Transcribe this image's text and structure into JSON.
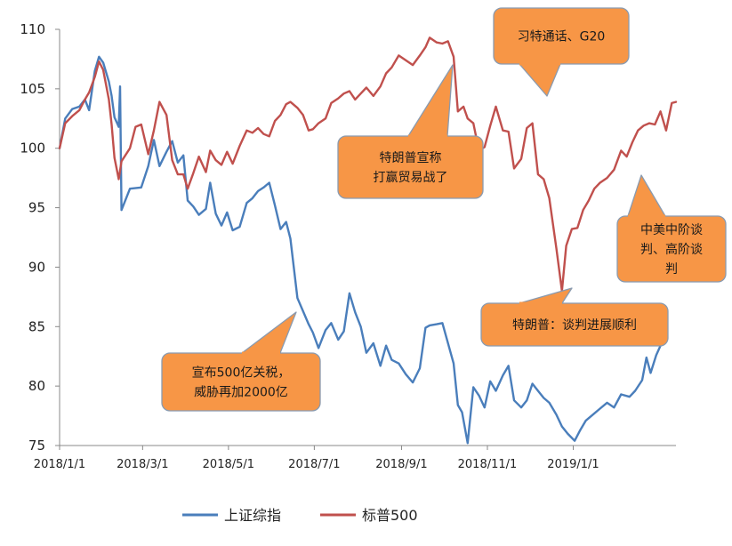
{
  "chart_data": {
    "type": "line",
    "title": "",
    "xlabel": "",
    "ylabel": "",
    "ylim": [
      75,
      110
    ],
    "yticks": [
      75,
      80,
      85,
      90,
      95,
      100,
      105,
      110
    ],
    "xticks": [
      "2018/1/1",
      "2018/3/1",
      "2018/5/1",
      "2018/7/1",
      "2018/9/1",
      "2018/11/1",
      "2019/1/1"
    ],
    "xrange": [
      "2018/1/1",
      "2019/3/15"
    ],
    "grid": false,
    "legend_position": "bottom",
    "series": [
      {
        "name": "上证综指",
        "color": "#4a7ebb",
        "points": [
          [
            "2018/1/1",
            100
          ],
          [
            "2018/1/5",
            102.5
          ],
          [
            "2018/1/10",
            103.3
          ],
          [
            "2018/1/15",
            103.5
          ],
          [
            "2018/1/19",
            104.1
          ],
          [
            "2018/1/22",
            103.2
          ],
          [
            "2018/1/26",
            106.5
          ],
          [
            "2018/1/29",
            107.7
          ],
          [
            "2018/2/1",
            107.2
          ],
          [
            "2018/2/5",
            105.6
          ],
          [
            "2018/2/7",
            104.4
          ],
          [
            "2018/2/9",
            102.6
          ],
          [
            "2018/2/12",
            101.8
          ],
          [
            "2018/2/13",
            105.2
          ],
          [
            "2018/2/14",
            94.8
          ],
          [
            "2018/2/20",
            96.6
          ],
          [
            "2018/2/28",
            96.7
          ],
          [
            "2018/3/5",
            98.5
          ],
          [
            "2018/3/9",
            100.7
          ],
          [
            "2018/3/13",
            98.5
          ],
          [
            "2018/3/18",
            99.7
          ],
          [
            "2018/3/22",
            100.6
          ],
          [
            "2018/3/26",
            98.8
          ],
          [
            "2018/3/30",
            99.4
          ],
          [
            "2018/4/2",
            95.6
          ],
          [
            "2018/4/6",
            95.1
          ],
          [
            "2018/4/10",
            94.4
          ],
          [
            "2018/4/15",
            94.9
          ],
          [
            "2018/4/18",
            97.1
          ],
          [
            "2018/4/22",
            94.5
          ],
          [
            "2018/4/26",
            93.5
          ],
          [
            "2018/4/30",
            94.6
          ],
          [
            "2018/5/4",
            93.1
          ],
          [
            "2018/5/9",
            93.4
          ],
          [
            "2018/5/14",
            95.4
          ],
          [
            "2018/5/18",
            95.8
          ],
          [
            "2018/5/22",
            96.4
          ],
          [
            "2018/5/26",
            96.7
          ],
          [
            "2018/5/30",
            97.1
          ],
          [
            "2018/6/3",
            95.2
          ],
          [
            "2018/6/7",
            93.2
          ],
          [
            "2018/6/11",
            93.8
          ],
          [
            "2018/6/14",
            92.4
          ],
          [
            "2018/6/19",
            87.4
          ],
          [
            "2018/6/23",
            86.3
          ],
          [
            "2018/6/27",
            85.2
          ],
          [
            "2018/6/30",
            84.5
          ],
          [
            "2018/7/4",
            83.2
          ],
          [
            "2018/7/9",
            84.7
          ],
          [
            "2018/7/13",
            85.3
          ],
          [
            "2018/7/18",
            83.9
          ],
          [
            "2018/7/22",
            84.6
          ],
          [
            "2018/7/26",
            87.8
          ],
          [
            "2018/7/30",
            86.2
          ],
          [
            "2018/8/3",
            85.0
          ],
          [
            "2018/8/7",
            82.8
          ],
          [
            "2018/8/12",
            83.6
          ],
          [
            "2018/8/17",
            81.7
          ],
          [
            "2018/8/21",
            83.4
          ],
          [
            "2018/8/25",
            82.2
          ],
          [
            "2018/8/30",
            81.9
          ],
          [
            "2018/9/4",
            81.0
          ],
          [
            "2018/9/9",
            80.3
          ],
          [
            "2018/9/14",
            81.5
          ],
          [
            "2018/9/18",
            84.9
          ],
          [
            "2018/9/21",
            85.1
          ],
          [
            "2018/9/26",
            85.2
          ],
          [
            "2018/9/30",
            85.3
          ],
          [
            "2018/10/8",
            81.9
          ],
          [
            "2018/10/11",
            78.4
          ],
          [
            "2018/10/14",
            77.8
          ],
          [
            "2018/10/18",
            75.2
          ],
          [
            "2018/10/22",
            79.9
          ],
          [
            "2018/10/26",
            79.2
          ],
          [
            "2018/10/30",
            78.2
          ],
          [
            "2018/11/3",
            80.4
          ],
          [
            "2018/11/7",
            79.6
          ],
          [
            "2018/11/12",
            80.9
          ],
          [
            "2018/11/16",
            81.7
          ],
          [
            "2018/11/20",
            78.8
          ],
          [
            "2018/11/25",
            78.2
          ],
          [
            "2018/11/29",
            78.8
          ],
          [
            "2018/12/3",
            80.2
          ],
          [
            "2018/12/7",
            79.6
          ],
          [
            "2018/12/11",
            79.0
          ],
          [
            "2018/12/15",
            78.6
          ],
          [
            "2018/12/20",
            77.6
          ],
          [
            "2018/12/24",
            76.6
          ],
          [
            "2018/12/28",
            76.0
          ],
          [
            "2019/1/2",
            75.4
          ],
          [
            "2019/1/6",
            76.3
          ],
          [
            "2019/1/10",
            77.1
          ],
          [
            "2019/1/15",
            77.6
          ],
          [
            "2019/1/20",
            78.1
          ],
          [
            "2019/1/25",
            78.6
          ],
          [
            "2019/1/30",
            78.2
          ],
          [
            "2019/2/4",
            79.3
          ],
          [
            "2019/2/10",
            79.1
          ],
          [
            "2019/2/14",
            79.6
          ],
          [
            "2019/2/19",
            80.5
          ],
          [
            "2019/2/22",
            82.4
          ],
          [
            "2019/2/25",
            81.1
          ],
          [
            "2019/3/1",
            82.6
          ],
          [
            "2019/3/4",
            83.4
          ]
        ]
      },
      {
        "name": "标普500",
        "color": "#c0504d",
        "points": [
          [
            "2018/1/1",
            100
          ],
          [
            "2018/1/5",
            102.1
          ],
          [
            "2018/1/10",
            102.7
          ],
          [
            "2018/1/15",
            103.2
          ],
          [
            "2018/1/19",
            104.1
          ],
          [
            "2018/1/22",
            104.7
          ],
          [
            "2018/1/26",
            106.0
          ],
          [
            "2018/1/29",
            107.3
          ],
          [
            "2018/2/1",
            106.6
          ],
          [
            "2018/2/5",
            104.1
          ],
          [
            "2018/2/7",
            102.0
          ],
          [
            "2018/2/9",
            99.2
          ],
          [
            "2018/2/12",
            97.4
          ],
          [
            "2018/2/14",
            98.9
          ],
          [
            "2018/2/20",
            100.0
          ],
          [
            "2018/2/24",
            101.8
          ],
          [
            "2018/2/28",
            102.0
          ],
          [
            "2018/3/5",
            99.5
          ],
          [
            "2018/3/9",
            101.5
          ],
          [
            "2018/3/13",
            103.9
          ],
          [
            "2018/3/18",
            102.8
          ],
          [
            "2018/3/22",
            99.0
          ],
          [
            "2018/3/26",
            97.8
          ],
          [
            "2018/3/30",
            97.8
          ],
          [
            "2018/4/2",
            96.6
          ],
          [
            "2018/4/6",
            97.9
          ],
          [
            "2018/4/10",
            99.3
          ],
          [
            "2018/4/15",
            98.0
          ],
          [
            "2018/4/18",
            99.8
          ],
          [
            "2018/4/22",
            99.0
          ],
          [
            "2018/4/26",
            98.6
          ],
          [
            "2018/4/30",
            99.7
          ],
          [
            "2018/5/4",
            98.7
          ],
          [
            "2018/5/9",
            100.2
          ],
          [
            "2018/5/14",
            101.5
          ],
          [
            "2018/5/18",
            101.3
          ],
          [
            "2018/5/22",
            101.7
          ],
          [
            "2018/5/26",
            101.2
          ],
          [
            "2018/5/30",
            101.0
          ],
          [
            "2018/6/3",
            102.3
          ],
          [
            "2018/6/7",
            102.8
          ],
          [
            "2018/6/11",
            103.7
          ],
          [
            "2018/6/14",
            103.9
          ],
          [
            "2018/6/19",
            103.4
          ],
          [
            "2018/6/23",
            102.8
          ],
          [
            "2018/6/27",
            101.5
          ],
          [
            "2018/6/30",
            101.6
          ],
          [
            "2018/7/4",
            102.1
          ],
          [
            "2018/7/9",
            102.5
          ],
          [
            "2018/7/13",
            103.8
          ],
          [
            "2018/7/18",
            104.2
          ],
          [
            "2018/7/22",
            104.6
          ],
          [
            "2018/7/26",
            104.8
          ],
          [
            "2018/7/30",
            104.1
          ],
          [
            "2018/8/3",
            104.6
          ],
          [
            "2018/8/7",
            105.1
          ],
          [
            "2018/8/12",
            104.4
          ],
          [
            "2018/8/17",
            105.2
          ],
          [
            "2018/8/21",
            106.3
          ],
          [
            "2018/8/25",
            106.8
          ],
          [
            "2018/8/30",
            107.8
          ],
          [
            "2018/9/4",
            107.4
          ],
          [
            "2018/9/9",
            107.0
          ],
          [
            "2018/9/14",
            107.8
          ],
          [
            "2018/9/18",
            108.5
          ],
          [
            "2018/9/21",
            109.3
          ],
          [
            "2018/9/26",
            108.9
          ],
          [
            "2018/9/30",
            108.8
          ],
          [
            "2018/10/4",
            109.0
          ],
          [
            "2018/10/8",
            107.7
          ],
          [
            "2018/10/11",
            103.1
          ],
          [
            "2018/10/15",
            103.5
          ],
          [
            "2018/10/18",
            102.5
          ],
          [
            "2018/10/22",
            102.1
          ],
          [
            "2018/10/26",
            99.8
          ],
          [
            "2018/10/30",
            100.1
          ],
          [
            "2018/11/3",
            101.9
          ],
          [
            "2018/11/7",
            103.5
          ],
          [
            "2018/11/12",
            101.5
          ],
          [
            "2018/11/16",
            101.4
          ],
          [
            "2018/11/20",
            98.3
          ],
          [
            "2018/11/25",
            99.1
          ],
          [
            "2018/11/29",
            101.7
          ],
          [
            "2018/12/3",
            102.1
          ],
          [
            "2018/12/7",
            97.8
          ],
          [
            "2018/12/11",
            97.4
          ],
          [
            "2018/12/15",
            95.8
          ],
          [
            "2018/12/20",
            91.6
          ],
          [
            "2018/12/24",
            88.0
          ],
          [
            "2018/12/27",
            91.8
          ],
          [
            "2018/12/31",
            93.2
          ],
          [
            "2019/1/4",
            93.3
          ],
          [
            "2019/1/8",
            94.8
          ],
          [
            "2019/1/12",
            95.6
          ],
          [
            "2019/1/16",
            96.6
          ],
          [
            "2019/1/20",
            97.1
          ],
          [
            "2019/1/25",
            97.5
          ],
          [
            "2019/1/30",
            98.2
          ],
          [
            "2019/2/4",
            99.8
          ],
          [
            "2019/2/8",
            99.3
          ],
          [
            "2019/2/12",
            100.5
          ],
          [
            "2019/2/16",
            101.5
          ],
          [
            "2019/2/20",
            101.9
          ],
          [
            "2019/2/24",
            102.1
          ],
          [
            "2019/2/28",
            102.0
          ],
          [
            "2019/3/4",
            103.1
          ],
          [
            "2019/3/8",
            101.5
          ],
          [
            "2019/3/12",
            103.8
          ],
          [
            "2019/3/15",
            103.9
          ]
        ]
      }
    ],
    "annotations": [
      {
        "id": "trade-war",
        "lines": [
          "特朗普宣称",
          "打赢贸易战了"
        ]
      },
      {
        "id": "g20",
        "lines": [
          "习特通话、G20"
        ]
      },
      {
        "id": "tariff",
        "lines": [
          "宣布500亿关税，",
          "威胁再加2000亿"
        ]
      },
      {
        "id": "trump-talks",
        "lines": [
          "特朗普：谈判进展顺利"
        ]
      },
      {
        "id": "talks",
        "lines": [
          "中美中阶谈",
          "判、高阶谈",
          "判"
        ]
      }
    ],
    "callout_colors": {
      "fill": "#f79646",
      "stroke": "#8a9bb0"
    }
  }
}
